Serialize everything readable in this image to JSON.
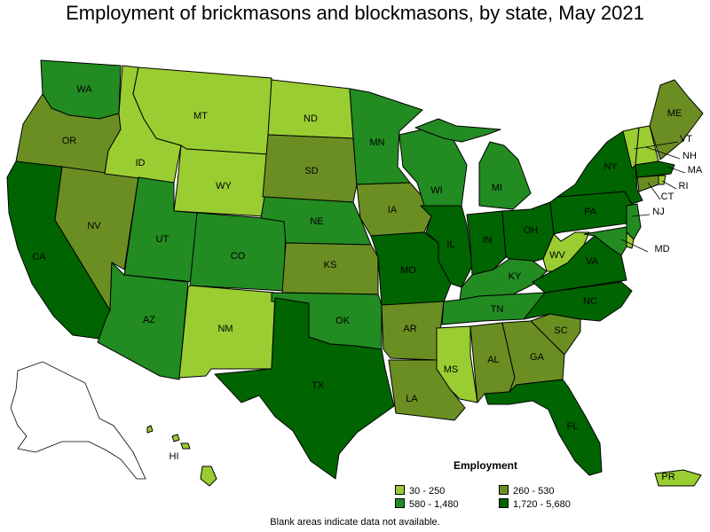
{
  "title": "Employment of brickmasons and blockmasons, by state, May 2021",
  "legend": {
    "title": "Employment",
    "bins": [
      {
        "label": "30 - 250",
        "color": "#9acd32"
      },
      {
        "label": "260 - 530",
        "color": "#6b8e23"
      },
      {
        "label": "580 - 1,480",
        "color": "#228b22"
      },
      {
        "label": "1,720 - 5,680",
        "color": "#006400"
      }
    ]
  },
  "footnote": "Blank areas indicate data not available.",
  "chart_data": {
    "type": "choropleth",
    "title": "Employment of brickmasons and blockmasons, by state, May 2021",
    "legend_title": "Employment",
    "bins": [
      "30 - 250",
      "260 - 530",
      "580 - 1,480",
      "1,720 - 5,680"
    ],
    "states": {
      "WA": "580 - 1,480",
      "OR": "260 - 530",
      "CA": "1,720 - 5,680",
      "NV": "260 - 530",
      "ID": "30 - 250",
      "MT": "30 - 250",
      "WY": "30 - 250",
      "UT": "580 - 1,480",
      "AZ": "580 - 1,480",
      "CO": "580 - 1,480",
      "NM": "30 - 250",
      "ND": "30 - 250",
      "SD": "260 - 530",
      "NE": "580 - 1,480",
      "KS": "260 - 530",
      "OK": "580 - 1,480",
      "TX": "1,720 - 5,680",
      "MN": "580 - 1,480",
      "IA": "260 - 530",
      "MO": "1,720 - 5,680",
      "AR": "260 - 530",
      "LA": "260 - 530",
      "WI": "580 - 1,480",
      "IL": "1,720 - 5,680",
      "MI": "580 - 1,480",
      "IN": "1,720 - 5,680",
      "OH": "1,720 - 5,680",
      "KY": "580 - 1,480",
      "TN": "580 - 1,480",
      "MS": "30 - 250",
      "AL": "260 - 530",
      "GA": "260 - 530",
      "FL": "1,720 - 5,680",
      "SC": "260 - 530",
      "NC": "1,720 - 5,680",
      "VA": "1,720 - 5,680",
      "WV": "30 - 250",
      "PA": "1,720 - 5,680",
      "NY": "1,720 - 5,680",
      "VT": "30 - 250",
      "NH": "30 - 250",
      "ME": "260 - 530",
      "MA": "1,720 - 5,680",
      "RI": "30 - 250",
      "CT": "260 - 530",
      "NJ": "580 - 1,480",
      "DE": "30 - 250",
      "MD": "580 - 1,480",
      "HI": "30 - 250",
      "PR": "30 - 250",
      "AK": ""
    }
  }
}
